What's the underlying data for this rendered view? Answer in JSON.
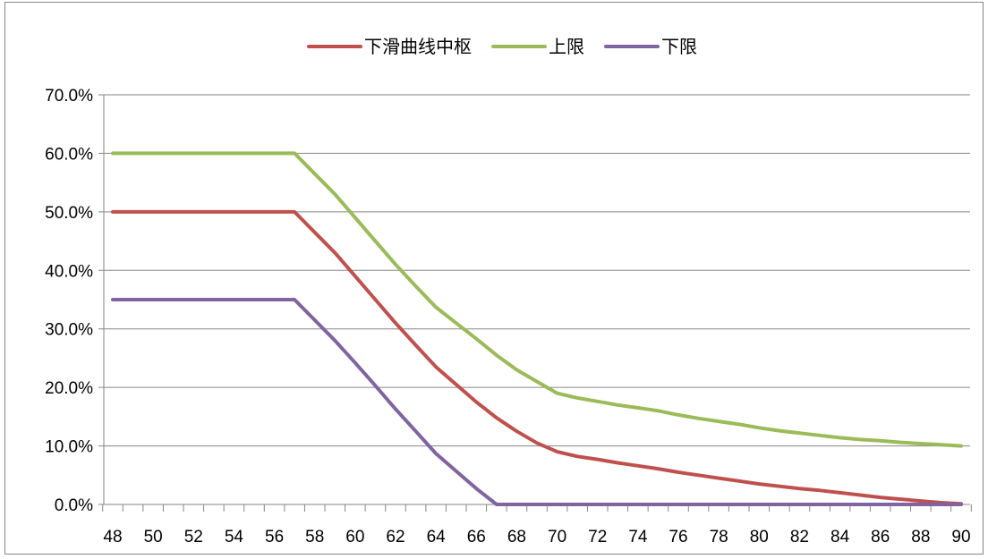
{
  "chart_data": {
    "type": "line",
    "title": "",
    "xlabel": "",
    "ylabel": "",
    "x": [
      48,
      49,
      50,
      51,
      52,
      53,
      54,
      55,
      56,
      57,
      58,
      59,
      60,
      61,
      62,
      63,
      64,
      65,
      66,
      67,
      68,
      69,
      70,
      71,
      72,
      73,
      74,
      75,
      76,
      77,
      78,
      79,
      80,
      81,
      82,
      83,
      84,
      85,
      86,
      87,
      88,
      89,
      90
    ],
    "x_tick_labels": [
      "48",
      "50",
      "52",
      "54",
      "56",
      "58",
      "60",
      "62",
      "64",
      "66",
      "68",
      "70",
      "72",
      "74",
      "76",
      "78",
      "80",
      "82",
      "84",
      "86",
      "88",
      "90"
    ],
    "y_tick_labels": [
      "0.0%",
      "10.0%",
      "20.0%",
      "30.0%",
      "40.0%",
      "50.0%",
      "60.0%",
      "70.0%"
    ],
    "ylim": [
      0,
      0.7
    ],
    "y_format": "percent",
    "grid": true,
    "legend_position": "top",
    "series": [
      {
        "name": "下滑曲线中枢",
        "color": "#C0504D",
        "values": [
          0.5,
          0.5,
          0.5,
          0.5,
          0.5,
          0.5,
          0.5,
          0.5,
          0.5,
          0.5,
          0.465,
          0.43,
          0.39,
          0.35,
          0.31,
          0.272,
          0.235,
          0.205,
          0.175,
          0.148,
          0.125,
          0.105,
          0.09,
          0.082,
          0.077,
          0.071,
          0.066,
          0.061,
          0.055,
          0.05,
          0.045,
          0.04,
          0.035,
          0.031,
          0.027,
          0.024,
          0.02,
          0.016,
          0.012,
          0.009,
          0.006,
          0.003,
          0.001
        ]
      },
      {
        "name": "上限",
        "color": "#9BBB59",
        "values": [
          0.6,
          0.6,
          0.6,
          0.6,
          0.6,
          0.6,
          0.6,
          0.6,
          0.6,
          0.6,
          0.565,
          0.53,
          0.49,
          0.45,
          0.41,
          0.373,
          0.337,
          0.31,
          0.283,
          0.255,
          0.23,
          0.21,
          0.19,
          0.182,
          0.176,
          0.17,
          0.165,
          0.16,
          0.153,
          0.147,
          0.142,
          0.137,
          0.131,
          0.126,
          0.122,
          0.118,
          0.114,
          0.111,
          0.109,
          0.106,
          0.104,
          0.102,
          0.1
        ]
      },
      {
        "name": "下限",
        "color": "#8064A2",
        "values": [
          0.35,
          0.35,
          0.35,
          0.35,
          0.35,
          0.35,
          0.35,
          0.35,
          0.35,
          0.35,
          0.315,
          0.28,
          0.242,
          0.203,
          0.163,
          0.125,
          0.087,
          0.057,
          0.027,
          0.0,
          0.0,
          0.0,
          0.0,
          0.0,
          0.0,
          0.0,
          0.0,
          0.0,
          0.0,
          0.0,
          0.0,
          0.0,
          0.0,
          0.0,
          0.0,
          0.0,
          0.0,
          0.0,
          0.0,
          0.0,
          0.0,
          0.0,
          0.0
        ]
      }
    ],
    "colors": {
      "gridline": "#868686",
      "axis": "#868686"
    }
  }
}
